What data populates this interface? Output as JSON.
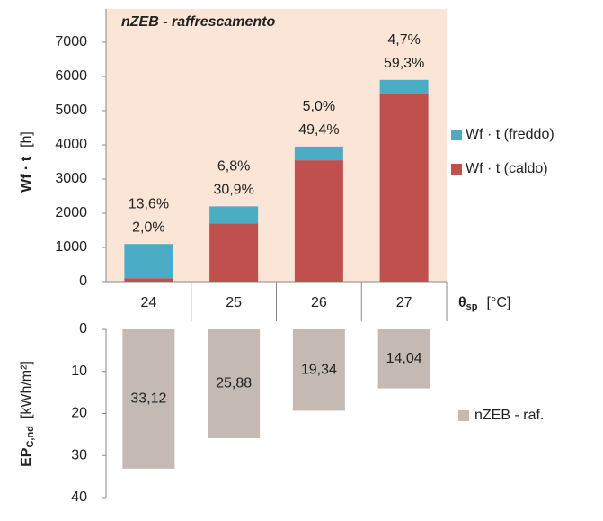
{
  "chart_data": [
    {
      "type": "stacked_bar",
      "title": "nZEB - raffrescamento",
      "ylabel": {
        "main": "Wf · t",
        "unit": "[h]"
      },
      "xlabel": {
        "main": "θ",
        "sub": "sp",
        "unit": "[°C]"
      },
      "categories": [
        "24",
        "25",
        "26",
        "27"
      ],
      "series": [
        {
          "name": "Wf · t (caldo)",
          "color": "#c0504d",
          "values": [
            100,
            1700,
            3550,
            5500
          ],
          "annotations": [
            "2,0%",
            "30,9%",
            "49,4%",
            "59,3%"
          ]
        },
        {
          "name": "Wf · t (freddo)",
          "color": "#4bacc6",
          "values": [
            1000,
            500,
            400,
            400
          ],
          "annotations": [
            "13,6%",
            "6,8%",
            "5,0%",
            "4,7%"
          ]
        }
      ],
      "ylim": [
        0,
        7000
      ],
      "yticks": [
        0,
        1000,
        2000,
        3000,
        4000,
        5000,
        6000,
        7000
      ],
      "background": "#fbe5d6"
    },
    {
      "type": "bar",
      "inverted": true,
      "ylabel": {
        "main": "EP",
        "sub": "C,nd",
        "unit": "[kWh/m²]"
      },
      "series": [
        {
          "name": "nZEB - raf.",
          "color": "#c4bab3",
          "values": [
            33.12,
            25.88,
            19.34,
            14.04
          ],
          "value_labels": [
            "33,12",
            "25,88",
            "19,34",
            "14,04"
          ]
        }
      ],
      "ylim": [
        0,
        40
      ],
      "yticks": [
        0,
        10,
        20,
        30,
        40
      ]
    }
  ]
}
